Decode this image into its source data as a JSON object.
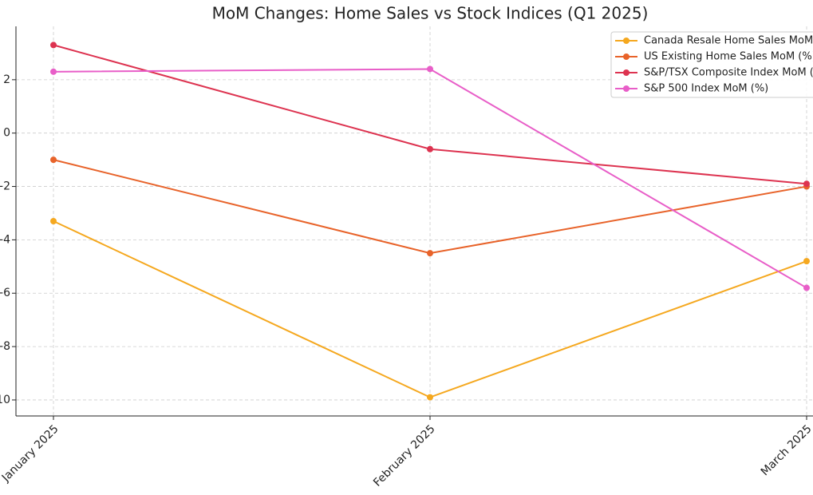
{
  "chart_data": {
    "type": "line",
    "title": "MoM Changes: Home Sales vs Stock Indices (Q1 2025)",
    "categories": [
      "January 2025",
      "February 2025",
      "March 2025"
    ],
    "series": [
      {
        "name": "Canada Resale Home Sales MoM (%)",
        "color": "#f5a81f",
        "values": [
          -3.3,
          -9.9,
          -4.8
        ]
      },
      {
        "name": "US Existing Home Sales MoM (%)",
        "color": "#e8632a",
        "values": [
          -1.0,
          -4.5,
          -2.0
        ]
      },
      {
        "name": "S&P/TSX Composite Index MoM (%)",
        "color": "#dd3350",
        "values": [
          3.3,
          -0.6,
          -1.9
        ]
      },
      {
        "name": "S&P 500 Index MoM (%)",
        "color": "#e85ec8",
        "values": [
          2.3,
          2.4,
          -5.8
        ]
      }
    ],
    "ylim": [
      -10.6,
      4.0
    ],
    "yticks": [
      -10,
      -8,
      -6,
      -4,
      -2,
      0,
      2
    ],
    "grid": true,
    "legend": "upper right"
  }
}
